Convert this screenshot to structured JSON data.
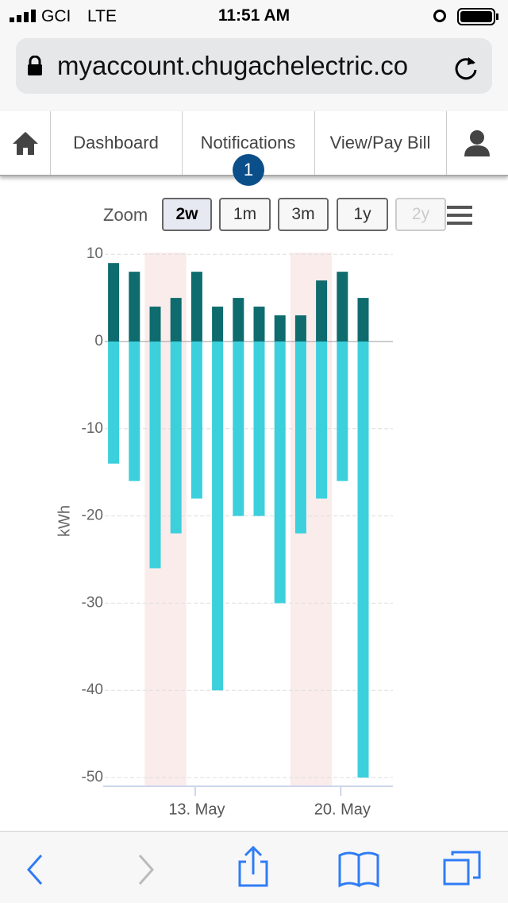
{
  "status": {
    "carrier": "GCI",
    "network": "LTE",
    "time": "11:51 AM"
  },
  "browser": {
    "url": "myaccount.chugachelectric.co"
  },
  "nav": {
    "items": [
      "Dashboard",
      "Notifications",
      "View/Pay Bill"
    ],
    "badge": 1
  },
  "zoom": {
    "label": "Zoom",
    "buttons": [
      "2w",
      "1m",
      "3m",
      "1y",
      "2y"
    ],
    "selected": 0,
    "disabled": [
      4
    ]
  },
  "chart_data": {
    "type": "bar",
    "y_label": "kWh",
    "categories": [
      null,
      null,
      null,
      null,
      "13. May",
      null,
      null,
      null,
      null,
      null,
      null,
      "20. May",
      null
    ],
    "series": [
      {
        "color": "#0e6b6e",
        "values": [
          9,
          8,
          4,
          5,
          8,
          4,
          5,
          4,
          3,
          3,
          7,
          8,
          5
        ]
      },
      {
        "color": "#3bd0dc",
        "values": [
          -14,
          -16,
          -26,
          -22,
          -18,
          -40,
          -20,
          -20,
          -30,
          -22,
          -18,
          -16,
          -50
        ]
      }
    ],
    "ylim": [
      -51,
      10.2
    ],
    "yticks": [
      10,
      0,
      -10,
      -20,
      -30,
      -40,
      -50
    ],
    "grid": true,
    "bands": [
      [
        2,
        3
      ],
      [
        9,
        10
      ]
    ],
    "band_color": "#fbecec"
  }
}
